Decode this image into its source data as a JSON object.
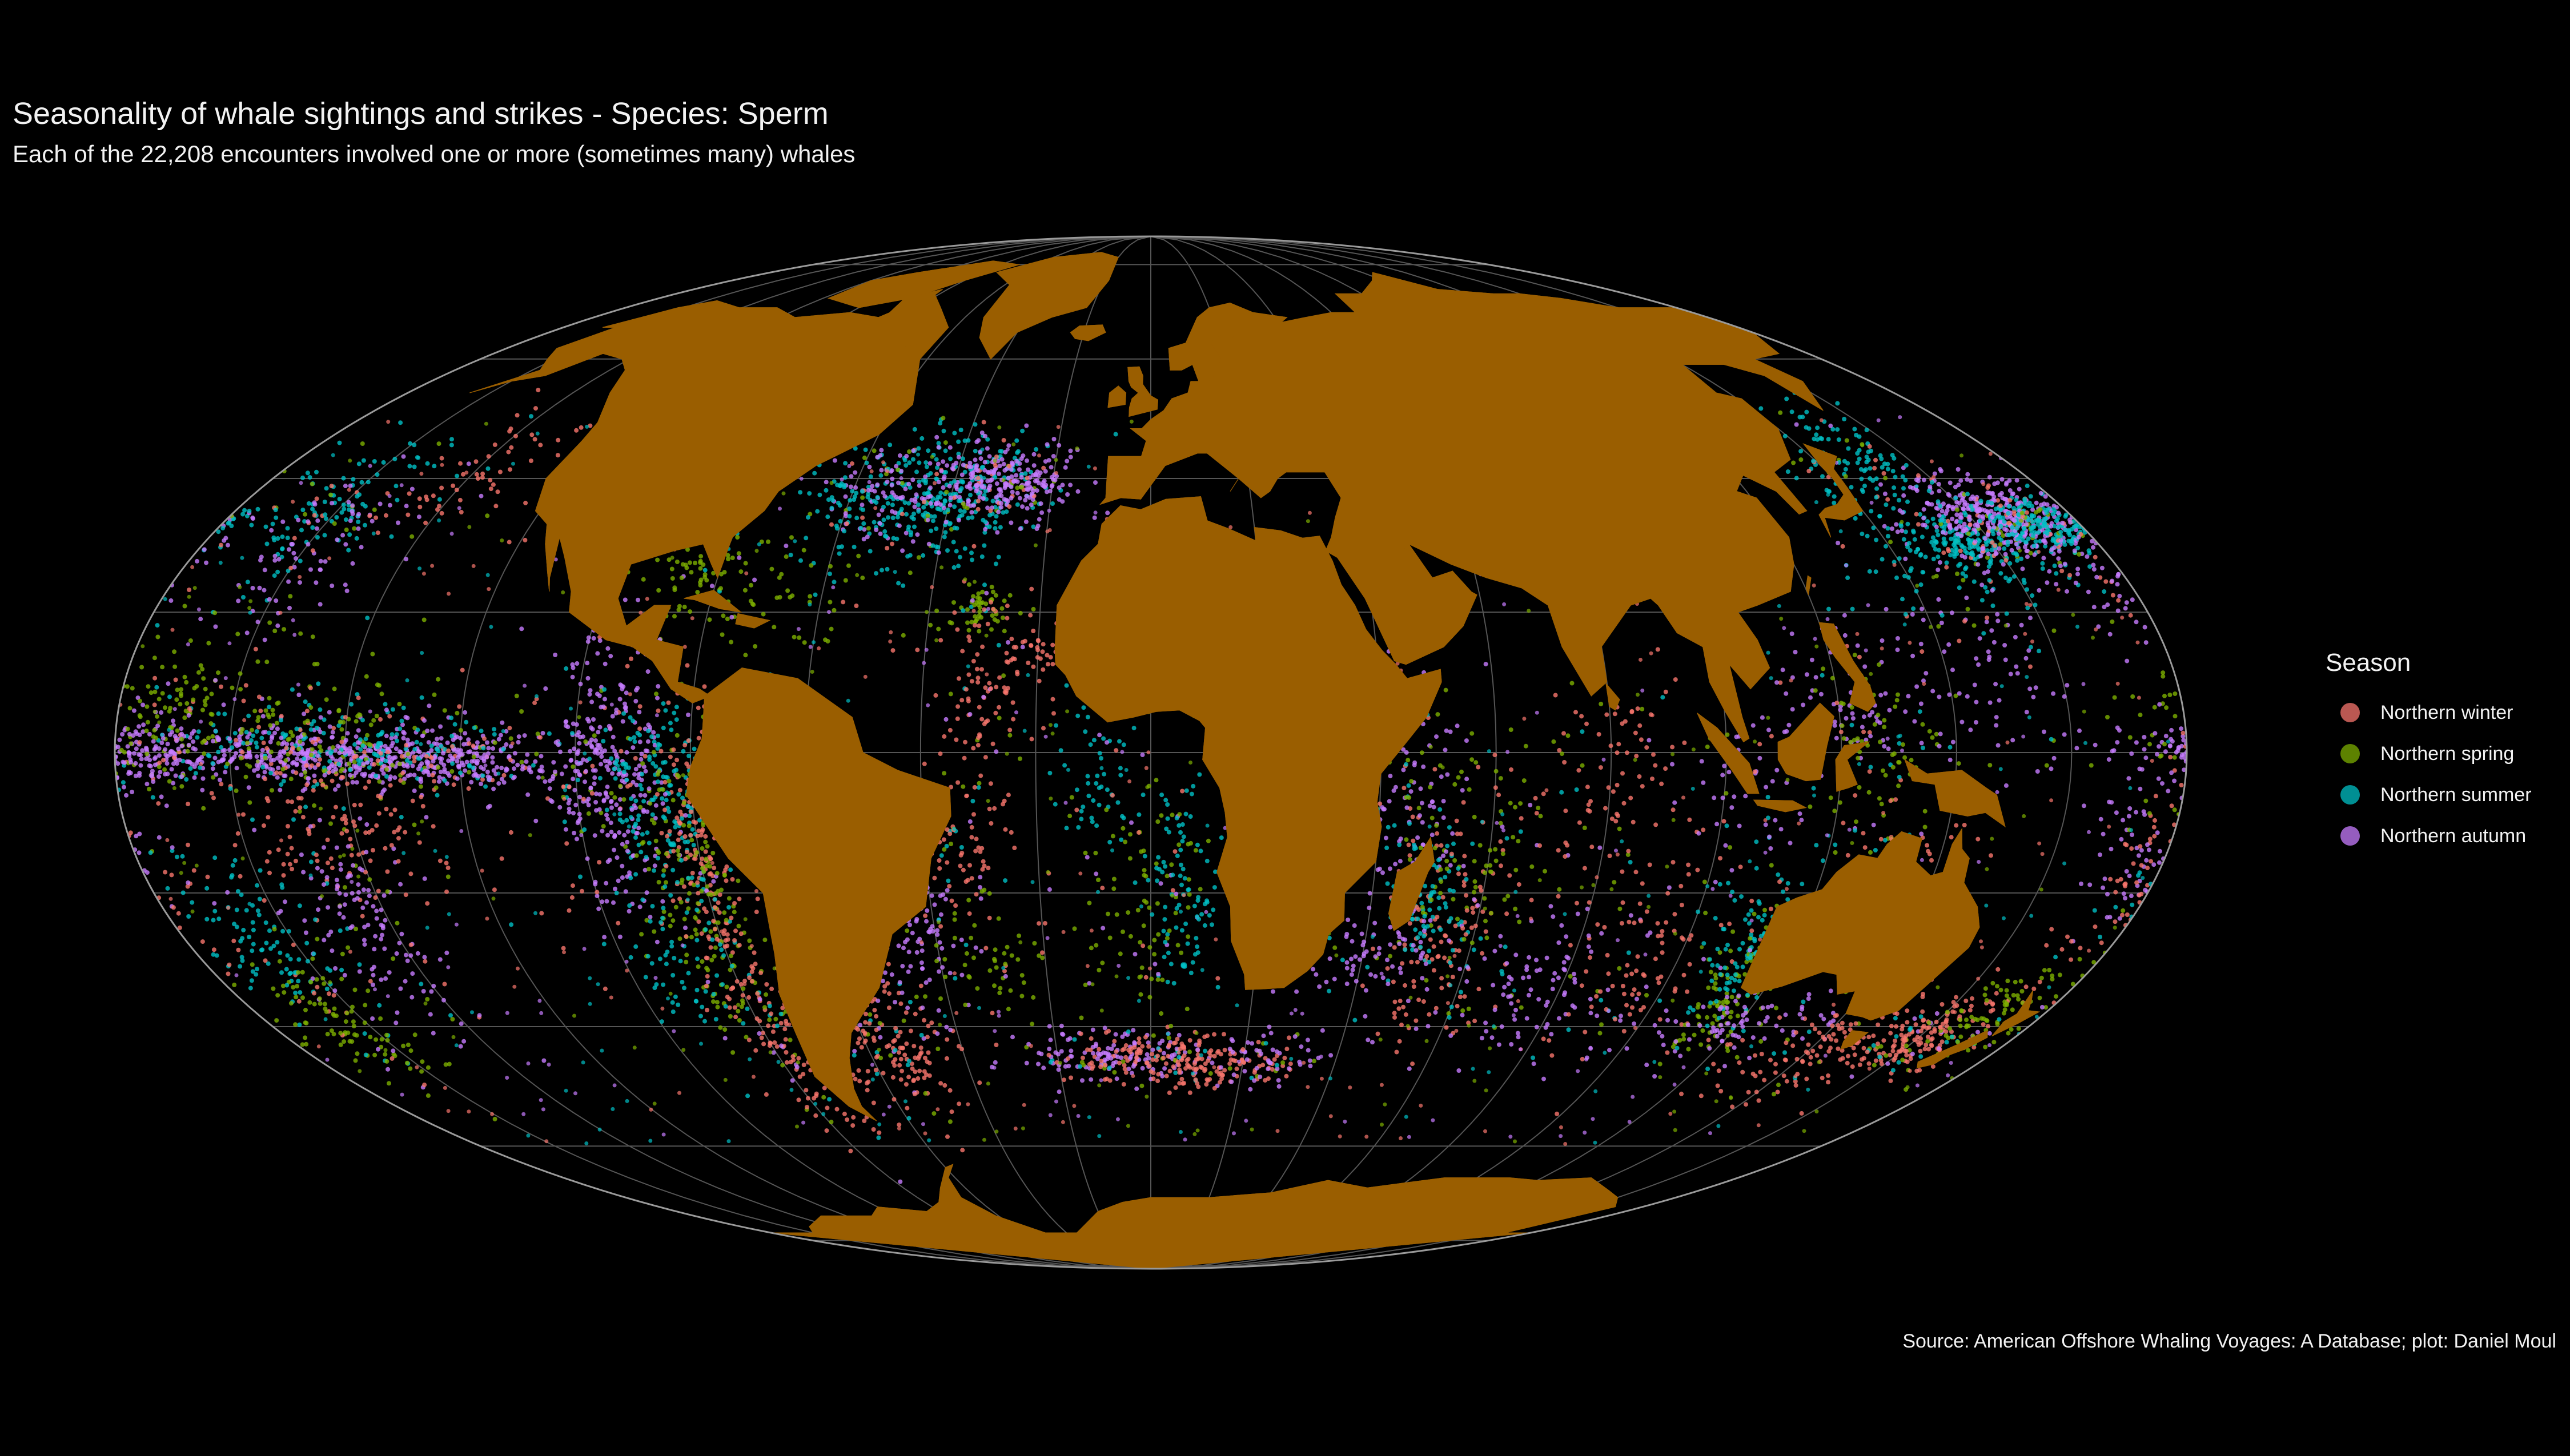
{
  "title": "Seasonality of whale sightings and strikes - Species: Sperm",
  "subtitle": "Each of the 22,208 encounters involved one or more (sometimes many) whales",
  "caption": "Source: American Offshore Whaling Voyages: A Database; plot: Daniel Moul",
  "legend": {
    "title": "Season",
    "items": [
      {
        "label": "Northern winter",
        "color": "#F8766D"
      },
      {
        "label": "Northern spring",
        "color": "#7CAE00"
      },
      {
        "label": "Northern summer",
        "color": "#00BFC4"
      },
      {
        "label": "Northern autumn",
        "color": "#C77CFF"
      }
    ]
  },
  "map": {
    "projection": "mollweide",
    "center_longitude": 0,
    "background": "#000000",
    "land_color": "#9A5E00",
    "graticule_color": "#555555",
    "graticule_step_degrees": 20,
    "outline_color": "#9a9a9a"
  }
}
